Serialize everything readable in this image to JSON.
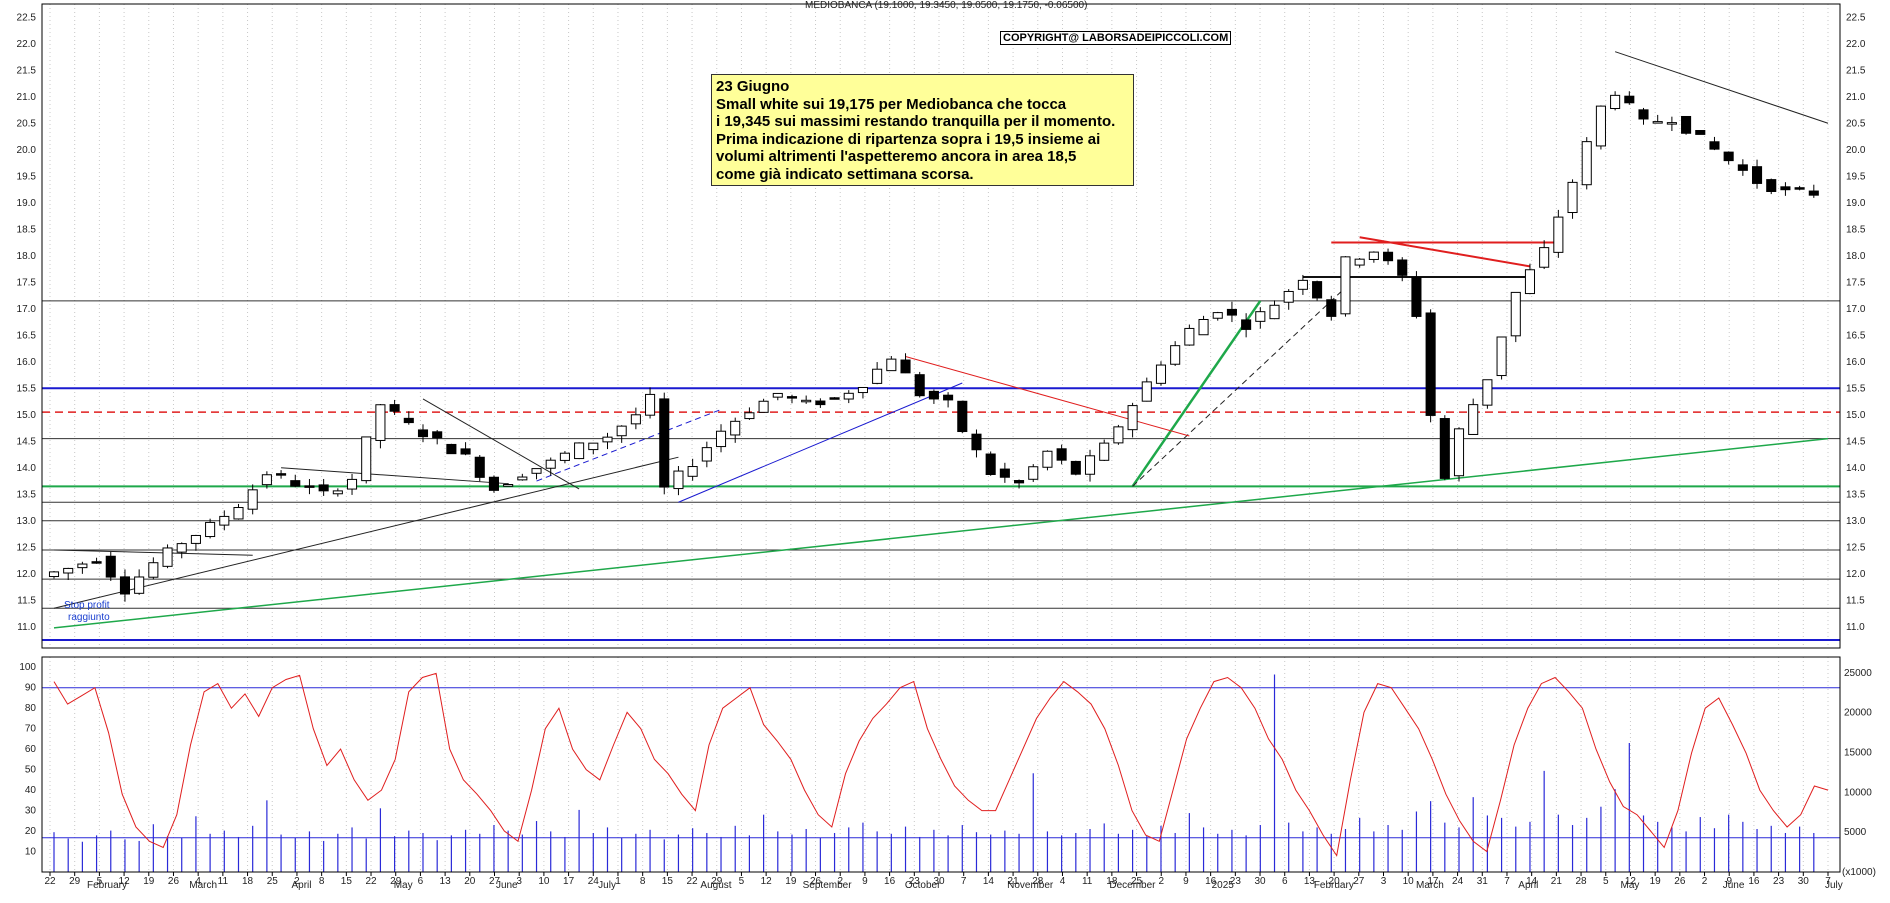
{
  "header": {
    "title": "MEDIOBANCA (19.1000, 19.3450, 19.0500, 19.1750, -0.06500)",
    "copyright": "COPYRIGHT@ LABORSADEIPICCOLI.COM"
  },
  "annotation": {
    "lines": [
      "23 Giugno",
      "Small white sui 19,175 per Mediobanca che tocca",
      "i 19,345 sui massimi restando tranquilla per il momento.",
      "Prima indicazione di ripartenza sopra i 19,5 insieme ai",
      "volumi altrimenti l'aspetteremo ancora in area 18,5",
      "come già indicato settimana scorsa."
    ]
  },
  "stop_label": [
    "Stop profit",
    "raggiunto"
  ],
  "colors": {
    "candle": "#000000",
    "blue_level": "#1a1ad0",
    "green_trend": "#1ea84a",
    "red_trend": "#e01e1e",
    "oscillator": "#e01e1e",
    "volume": "#2a2ad8",
    "grid": "#c8c8c8"
  },
  "chart_data": [
    {
      "type": "candlestick",
      "title": "MEDIOBANCA",
      "ylim": [
        10.6,
        22.75
      ],
      "yticks": [
        "11.0",
        "11.5",
        "12.0",
        "12.5",
        "13.0",
        "13.5",
        "14.0",
        "14.5",
        "15.0",
        "15.5",
        "16.0",
        "16.5",
        "17.0",
        "17.5",
        "18.0",
        "18.5",
        "19.0",
        "19.5",
        "20.0",
        "20.5",
        "21.0",
        "21.5",
        "22.0",
        "22.5"
      ],
      "x_day_labels": [
        "22",
        "29",
        "5",
        "12",
        "19",
        "26",
        "4",
        "11",
        "18",
        "25",
        "2",
        "8",
        "15",
        "22",
        "29",
        "6",
        "13",
        "20",
        "27",
        "3",
        "10",
        "17",
        "24",
        "1",
        "8",
        "15",
        "22",
        "29",
        "5",
        "12",
        "19",
        "26",
        "2",
        "9",
        "16",
        "23",
        "30",
        "7",
        "14",
        "21",
        "28",
        "4",
        "11",
        "18",
        "25",
        "2",
        "9",
        "16",
        "23",
        "30",
        "6",
        "13",
        "20",
        "27",
        "3",
        "10",
        "17",
        "24",
        "31",
        "7",
        "14",
        "21",
        "28",
        "5",
        "12",
        "19",
        "26",
        "2",
        "9",
        "16",
        "23",
        "30",
        "7"
      ],
      "x_month_labels": [
        "February",
        "March",
        "April",
        "May",
        "June",
        "July",
        "August",
        "September",
        "October",
        "November",
        "December",
        "2025",
        "February",
        "March",
        "April",
        "May",
        "June",
        "July"
      ],
      "trend_points": [
        [
          0,
          11.95
        ],
        [
          2,
          12.1
        ],
        [
          4,
          12.3
        ],
        [
          6,
          11.7
        ],
        [
          8,
          12.2
        ],
        [
          10,
          12.6
        ],
        [
          12,
          12.9
        ],
        [
          14,
          13.3
        ],
        [
          16,
          13.9
        ],
        [
          18,
          13.7
        ],
        [
          20,
          13.5
        ],
        [
          22,
          13.8
        ],
        [
          24,
          15.2
        ],
        [
          26,
          14.8
        ],
        [
          28,
          14.5
        ],
        [
          30,
          14.2
        ],
        [
          32,
          13.6
        ],
        [
          34,
          13.9
        ],
        [
          36,
          14.1
        ],
        [
          38,
          14.4
        ],
        [
          40,
          14.6
        ],
        [
          42,
          15.0
        ],
        [
          43,
          15.3
        ],
        [
          44,
          13.6
        ],
        [
          46,
          14.1
        ],
        [
          48,
          14.7
        ],
        [
          50,
          15.1
        ],
        [
          52,
          15.4
        ],
        [
          54,
          15.2
        ],
        [
          56,
          15.3
        ],
        [
          58,
          15.6
        ],
        [
          60,
          16.1
        ],
        [
          62,
          15.4
        ],
        [
          64,
          15.2
        ],
        [
          65,
          14.7
        ],
        [
          67,
          13.9
        ],
        [
          69,
          13.7
        ],
        [
          71,
          14.3
        ],
        [
          73,
          13.9
        ],
        [
          75,
          14.4
        ],
        [
          77,
          15.2
        ],
        [
          79,
          16.0
        ],
        [
          81,
          16.6
        ],
        [
          83,
          17.0
        ],
        [
          85,
          16.7
        ],
        [
          87,
          17.1
        ],
        [
          89,
          17.6
        ],
        [
          91,
          16.9
        ],
        [
          92,
          17.9
        ],
        [
          94,
          18.1
        ],
        [
          96,
          17.6
        ],
        [
          97,
          16.9
        ],
        [
          98,
          15.0
        ],
        [
          99,
          13.8
        ],
        [
          100,
          14.7
        ],
        [
          102,
          15.7
        ],
        [
          104,
          17.3
        ],
        [
          106,
          18.1
        ],
        [
          108,
          19.4
        ],
        [
          110,
          20.8
        ],
        [
          111,
          21.1
        ],
        [
          113,
          20.5
        ],
        [
          115,
          20.6
        ],
        [
          117,
          20.2
        ],
        [
          119,
          19.8
        ],
        [
          121,
          19.4
        ],
        [
          123,
          19.2
        ],
        [
          125,
          19.18
        ]
      ],
      "levels": [
        {
          "price": 15.5,
          "style": "blue"
        },
        {
          "price": 10.75,
          "style": "blue"
        },
        {
          "price": 15.05,
          "style": "red-dashed"
        },
        {
          "price": 17.15,
          "style": "black-thin"
        },
        {
          "price": 14.55,
          "style": "black-thin"
        },
        {
          "price": 13.65,
          "style": "green"
        },
        {
          "price": 13.35,
          "style": "black-thin"
        },
        {
          "price": 13.0,
          "style": "black-thin"
        },
        {
          "price": 12.45,
          "style": "black-thin"
        },
        {
          "price": 11.9,
          "style": "black-thin"
        },
        {
          "price": 11.35,
          "style": "black-thin"
        }
      ]
    },
    {
      "type": "line",
      "title": "",
      "ylim": [
        0,
        105
      ],
      "yticks": [
        "10",
        "20",
        "30",
        "40",
        "50",
        "60",
        "70",
        "80",
        "90",
        "100"
      ],
      "reference_level": 90,
      "values": [
        93,
        82,
        86,
        90,
        68,
        38,
        22,
        15,
        12,
        28,
        62,
        88,
        92,
        80,
        87,
        76,
        90,
        94,
        96,
        70,
        52,
        60,
        45,
        35,
        40,
        55,
        88,
        95,
        97,
        60,
        45,
        38,
        30,
        20,
        15,
        40,
        70,
        80,
        60,
        50,
        45,
        62,
        78,
        70,
        55,
        48,
        38,
        30,
        62,
        80,
        85,
        90,
        72,
        64,
        55,
        40,
        28,
        22,
        48,
        64,
        75,
        82,
        90,
        93,
        70,
        55,
        42,
        35,
        30,
        30,
        45,
        60,
        75,
        85,
        93,
        88,
        82,
        70,
        52,
        30,
        18,
        15,
        40,
        65,
        80,
        93,
        95,
        90,
        80,
        65,
        55,
        40,
        30,
        18,
        8,
        45,
        78,
        92,
        90,
        80,
        70,
        55,
        38,
        25,
        15,
        10,
        35,
        62,
        80,
        92,
        95,
        88,
        80,
        60,
        44,
        32,
        28,
        20,
        12,
        30,
        58,
        80,
        85,
        72,
        58,
        40,
        30,
        22,
        28,
        42,
        40
      ]
    },
    {
      "type": "bar",
      "title": "",
      "ylim": [
        0,
        27000
      ],
      "yticks": [
        "5000",
        "10000",
        "15000",
        "20000",
        "25000"
      ],
      "axis_label": "(x1000)",
      "reference_level": 4300,
      "values": [
        5000,
        4200,
        3800,
        4600,
        5200,
        4100,
        3900,
        6000,
        4500,
        4300,
        7000,
        4800,
        5200,
        4400,
        5800,
        9000,
        4700,
        4300,
        5100,
        3900,
        4800,
        5600,
        4200,
        8000,
        4500,
        5200,
        4900,
        4000,
        4600,
        5300,
        4800,
        5900,
        5200,
        4700,
        6400,
        5100,
        4400,
        7800,
        4900,
        5600,
        4300,
        4800,
        5300,
        4100,
        4700,
        5500,
        4900,
        4400,
        5800,
        4600,
        7200,
        5100,
        4700,
        5400,
        4300,
        4900,
        5600,
        6200,
        5100,
        4800,
        5700,
        4400,
        5300,
        4600,
        5900,
        5000,
        4700,
        5200,
        4800,
        12400,
        5100,
        4600,
        4900,
        5400,
        6100,
        4800,
        5300,
        4500,
        5800,
        4900,
        7400,
        5600,
        4800,
        5300,
        4600,
        5900,
        24800,
        6200,
        5100,
        5600,
        4800,
        5400,
        6800,
        5100,
        5900,
        5300,
        7600,
        8900,
        6200,
        5600,
        9400,
        7100,
        6800,
        5700,
        6300,
        12700,
        7200,
        5900,
        6800,
        8200,
        10400,
        16200,
        7100,
        6300,
        5600,
        5100,
        6900,
        5500,
        7200,
        6300,
        5400,
        5800,
        4900,
        5700,
        4900
      ]
    }
  ]
}
